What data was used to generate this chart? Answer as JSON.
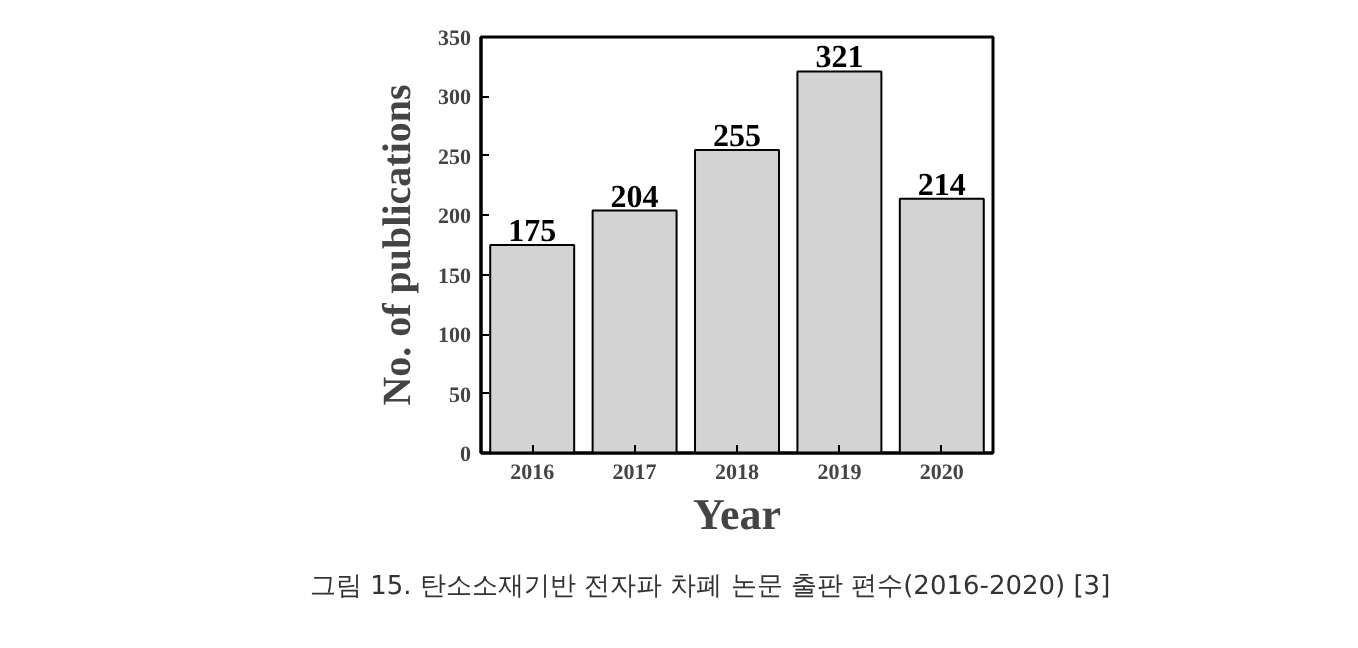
{
  "chart_data": {
    "type": "bar",
    "xlabel": "Year",
    "ylabel": "No. of publications",
    "categories": [
      "2016",
      "2017",
      "2018",
      "2019",
      "2020"
    ],
    "values": [
      175,
      204,
      255,
      321,
      214
    ],
    "color": "#d3d3d3",
    "ylim": [
      0,
      350
    ],
    "yticks": [
      0,
      50,
      100,
      150,
      200,
      250,
      300,
      350
    ],
    "data_labels": true,
    "grid": false,
    "annotations": [
      "그림 15. 탄소소재기반 전자파 차폐 논문 출판 편수(2016-2020) [3]"
    ]
  }
}
